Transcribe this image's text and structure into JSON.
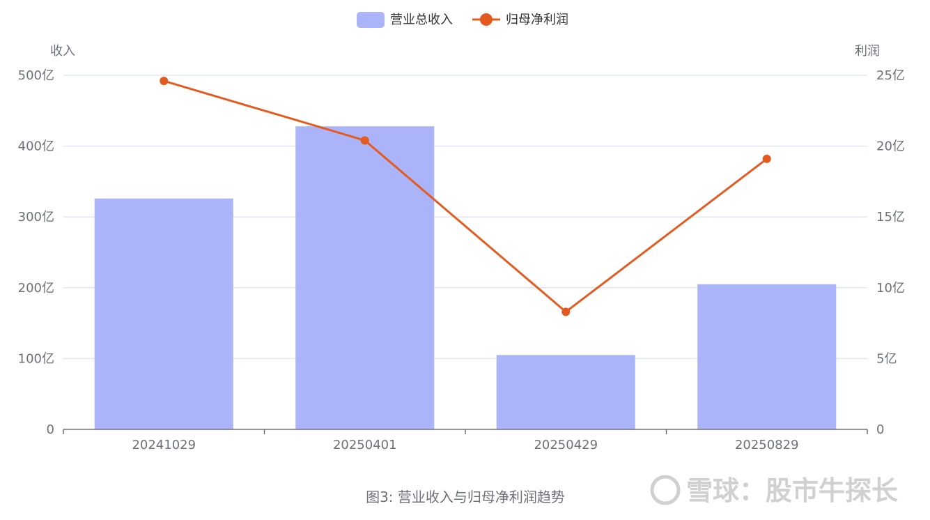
{
  "chart_data": {
    "type": "bar",
    "categories": [
      "20241029",
      "20250401",
      "20250429",
      "20250829"
    ],
    "series": [
      {
        "name": "营业总收入",
        "type": "bar",
        "axis": "left",
        "values": [
          326,
          428,
          105,
          205
        ]
      },
      {
        "name": "归母净利润",
        "type": "line",
        "axis": "right",
        "values": [
          24.6,
          20.4,
          8.3,
          19.1
        ]
      }
    ],
    "yleft": {
      "label": "收入",
      "ylim": [
        0,
        500
      ],
      "ticks": [
        "0",
        "100亿",
        "200亿",
        "300亿",
        "400亿",
        "500亿"
      ]
    },
    "yright": {
      "label": "利润",
      "ylim": [
        0,
        25
      ],
      "ticks": [
        "0",
        "5亿",
        "10亿",
        "15亿",
        "20亿",
        "25亿"
      ]
    },
    "grid": true,
    "legend_position": "top-center",
    "caption": "图3: 营业收入与归母净利润趋势",
    "colors": {
      "bar": "#abb4f8",
      "line": "#e35b1f",
      "grid": "#e0e6f1",
      "axis": "#6e7079"
    }
  },
  "watermark": {
    "text": "雪球：股市牛探长"
  }
}
